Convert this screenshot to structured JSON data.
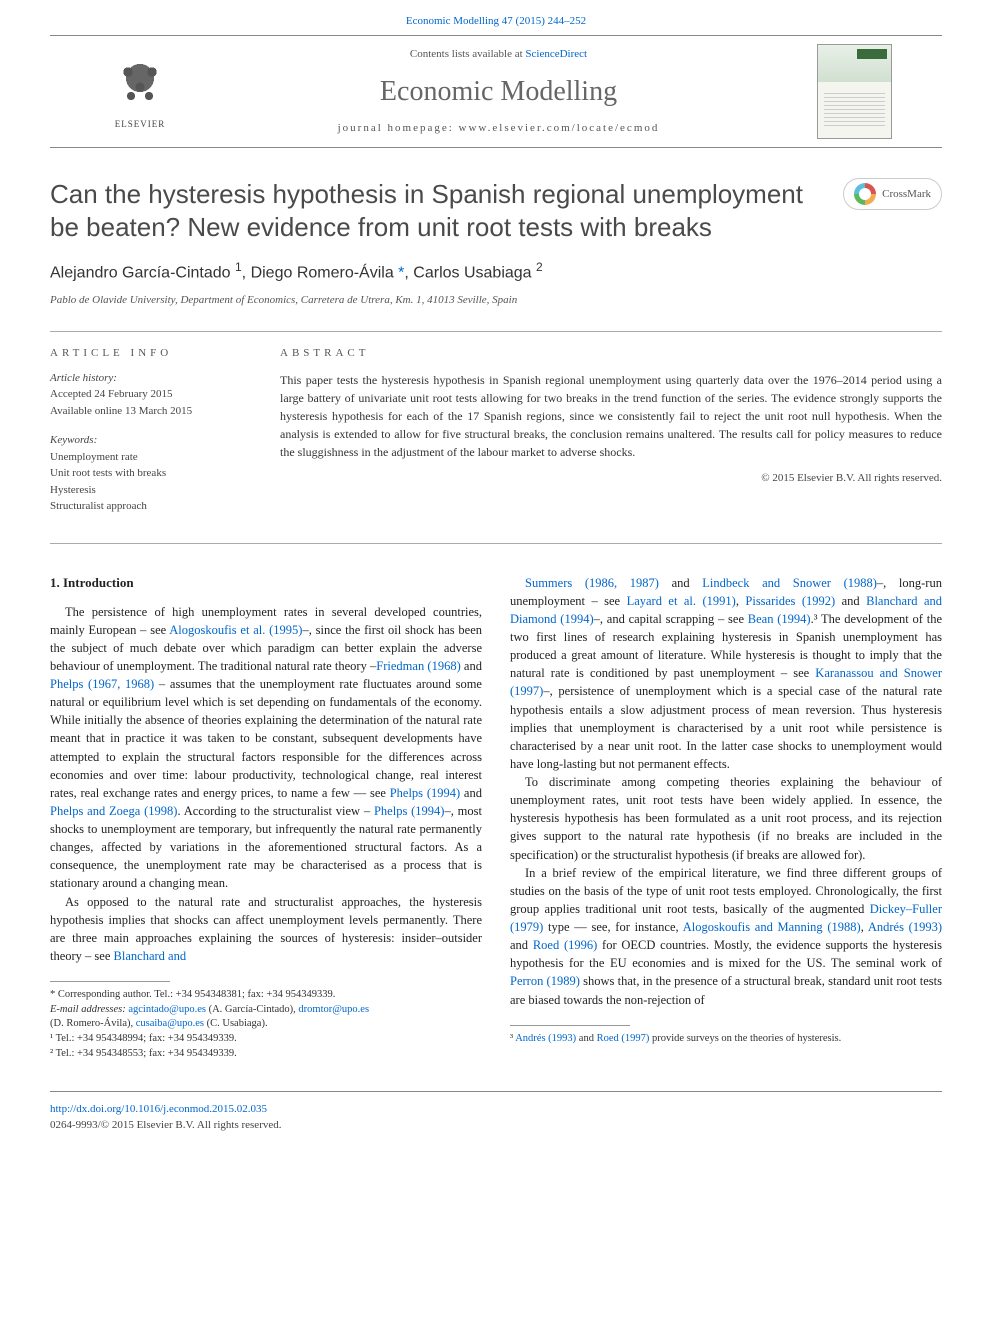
{
  "top_citation": {
    "prefix": "",
    "link": "Economic Modelling 47 (2015) 244–252"
  },
  "header": {
    "contents_prefix": "Contents lists available at ",
    "contents_link": "ScienceDirect",
    "journal_name": "Economic Modelling",
    "homepage_label": "journal homepage: ",
    "homepage_url": "www.elsevier.com/locate/ecmod",
    "publisher_name": "ELSEVIER"
  },
  "article": {
    "title": "Can the hysteresis hypothesis in Spanish regional unemployment be beaten? New evidence from unit root tests with breaks",
    "crossmark_label": "CrossMark",
    "authors_html": "Alejandro García-Cintado <sup>1</sup>, Diego Romero-Ávila <a href=\"#\">*</a>, Carlos Usabiaga <sup>2</sup>",
    "affiliation": "Pablo de Olavide University, Department of Economics, Carretera de Utrera, Km. 1, 41013 Seville, Spain"
  },
  "article_info": {
    "heading": "ARTICLE INFO",
    "history_label": "Article history:",
    "accepted": "Accepted 24 February 2015",
    "available": "Available online 13 March 2015",
    "keywords_label": "Keywords:",
    "keywords": [
      "Unemployment rate",
      "Unit root tests with breaks",
      "Hysteresis",
      "Structuralist approach"
    ]
  },
  "abstract": {
    "heading": "ABSTRACT",
    "text": "This paper tests the hysteresis hypothesis in Spanish regional unemployment using quarterly data over the 1976–2014 period using a large battery of univariate unit root tests allowing for two breaks in the trend function of the series. The evidence strongly supports the hysteresis hypothesis for each of the 17 Spanish regions, since we consistently fail to reject the unit root null hypothesis. When the analysis is extended to allow for five structural breaks, the conclusion remains unaltered. The results call for policy measures to reduce the sluggishness in the adjustment of the labour market to adverse shocks.",
    "copyright": "© 2015 Elsevier B.V. All rights reserved."
  },
  "body": {
    "section1_heading": "1. Introduction",
    "p1": "The persistence of high unemployment rates in several developed countries, mainly European – see Alogoskoufis et al. (1995)–, since the first oil shock has been the subject of much debate over which paradigm can better explain the adverse behaviour of unemployment. The traditional natural rate theory –Friedman (1968) and Phelps (1967, 1968) – assumes that the unemployment rate fluctuates around some natural or equilibrium level which is set depending on fundamentals of the economy. While initially the absence of theories explaining the determination of the natural rate meant that in practice it was taken to be constant, subsequent developments have attempted to explain the structural factors responsible for the differences across economies and over time: labour productivity, technological change, real interest rates, real exchange rates and energy prices, to name a few — see Phelps (1994) and Phelps and Zoega (1998). According to the structuralist view – Phelps (1994)–, most shocks to unemployment are temporary, but infrequently the natural rate permanently changes, affected by variations in the aforementioned structural factors. As a consequence, the unemployment rate may be characterised as a process that is stationary around a changing mean.",
    "p2": "As opposed to the natural rate and structuralist approaches, the hysteresis hypothesis implies that shocks can affect unemployment levels permanently. There are three main approaches explaining the sources of hysteresis: insider–outsider theory – see Blanchard and Summers (1986, 1987) and Lindbeck and Snower (1988)–, long-run unemployment – see Layard et al. (1991), Pissarides (1992) and Blanchard and Diamond (1994)–, and capital scrapping – see Bean (1994).³ The development of the two first lines of research explaining hysteresis in Spanish unemployment has produced a great amount of literature. While hysteresis is thought to imply that the natural rate is conditioned by past unemployment – see Karanassou and Snower (1997)–, persistence of unemployment which is a special case of the natural rate hypothesis entails a slow adjustment process of mean reversion. Thus hysteresis implies that unemployment is characterised by a unit root while persistence is characterised by a near unit root. In the latter case shocks to unemployment would have long-lasting but not permanent effects.",
    "p3": "To discriminate among competing theories explaining the behaviour of unemployment rates, unit root tests have been widely applied. In essence, the hysteresis hypothesis has been formulated as a unit root process, and its rejection gives support to the natural rate hypothesis (if no breaks are included in the specification) or the structuralist hypothesis (if breaks are allowed for).",
    "p4": "In a brief review of the empirical literature, we find three different groups of studies on the basis of the type of unit root tests employed. Chronologically, the first group applies traditional unit root tests, basically of the augmented Dickey–Fuller (1979) type — see, for instance, Alogoskoufis and Manning (1988), Andrés (1993) and Roed (1996) for OECD countries. Mostly, the evidence supports the hysteresis hypothesis for the EU economies and is mixed for the US. The seminal work of Perron (1989) shows that, in the presence of a structural break, standard unit root tests are biased towards the non-rejection of"
  },
  "left_footnotes": {
    "corr": "* Corresponding author. Tel.: +34 954348381; fax: +34 954349339.",
    "emails_label": "E-mail addresses: ",
    "email1": "agcintado@upo.es",
    "email1_name": " (A. García-Cintado), ",
    "email2": "dromtor@upo.es",
    "email2_suffix": "",
    "email2_name": "(D. Romero-Ávila), ",
    "email3": "cusaiba@upo.es",
    "email3_name": " (C. Usabiaga).",
    "tel1": "¹ Tel.: +34 954348994; fax: +34 954349339.",
    "tel2": "² Tel.: +34 954348553; fax: +34 954349339."
  },
  "right_footnotes": {
    "fn3": "³ Andrés (1993) and Roed (1997) provide surveys on the theories of hysteresis."
  },
  "footer": {
    "doi": "http://dx.doi.org/10.1016/j.econmod.2015.02.035",
    "issn_line": "0264-9993/© 2015 Elsevier B.V. All rights reserved."
  },
  "links_in_body": [
    "Alogoskoufis et al. (1995)",
    "Friedman (1968)",
    "Phelps (1967, 1968)",
    "Phelps (1994)",
    "Phelps and Zoega (1998)",
    "Phelps (1994)",
    "Blanchard and Summers (1986, 1987)",
    "Lindbeck and Snower (1988)",
    "Layard et al. (1991)",
    "Pissarides (1992)",
    "Blanchard and Diamond (1994)",
    "Bean (1994)",
    "Karanassou and Snower (1997)",
    "Dickey–Fuller (1979)",
    "Alogoskoufis and Manning (1988)",
    "Andrés (1993)",
    "Roed (1996)",
    "Perron (1989)",
    "Andrés (1993)",
    "Roed (1997)"
  ],
  "colors": {
    "link": "#0066cc",
    "text": "#333333",
    "heading_gray": "#4a4a4a",
    "rule": "#888888"
  }
}
